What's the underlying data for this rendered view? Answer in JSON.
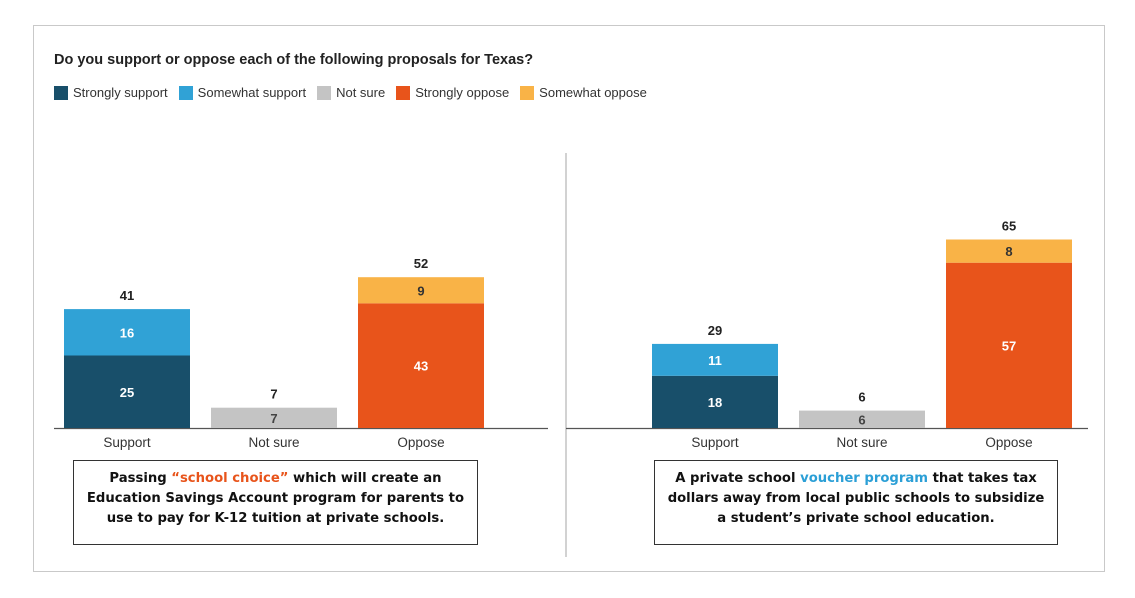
{
  "title": "Do you support or oppose each of the following proposals for Texas?",
  "legend": [
    {
      "label": "Strongly support",
      "color": "#184f6a"
    },
    {
      "label": "Somewhat support",
      "color": "#30a2d6"
    },
    {
      "label": "Not sure",
      "color": "#c4c4c4"
    },
    {
      "label": "Strongly oppose",
      "color": "#e8541b"
    },
    {
      "label": "Somewhat oppose",
      "color": "#f9b347"
    }
  ],
  "captions": {
    "left": {
      "before": "Passing ",
      "highlight": "“school choice”",
      "after": " which will create an Education Savings Account program for parents to use to pay for K-12 tuition at private schools."
    },
    "right": {
      "before": "A private school ",
      "highlight": "voucher program",
      "after": " that takes tax dollars away from local public schools to subsidize a student’s private school education."
    }
  },
  "chart_data": [
    {
      "type": "bar",
      "stacked": true,
      "categories": [
        "Support",
        "Not sure",
        "Oppose"
      ],
      "series": [
        {
          "name": "Strongly support",
          "values": [
            25,
            0,
            0
          ]
        },
        {
          "name": "Somewhat support",
          "values": [
            16,
            0,
            0
          ]
        },
        {
          "name": "Not sure",
          "values": [
            0,
            7,
            0
          ]
        },
        {
          "name": "Strongly oppose",
          "values": [
            0,
            0,
            43
          ]
        },
        {
          "name": "Somewhat oppose",
          "values": [
            0,
            0,
            9
          ]
        }
      ],
      "totals": [
        41,
        7,
        52
      ],
      "ylim": [
        0,
        70
      ]
    },
    {
      "type": "bar",
      "stacked": true,
      "categories": [
        "Support",
        "Not sure",
        "Oppose"
      ],
      "series": [
        {
          "name": "Strongly support",
          "values": [
            18,
            0,
            0
          ]
        },
        {
          "name": "Somewhat support",
          "values": [
            11,
            0,
            0
          ]
        },
        {
          "name": "Not sure",
          "values": [
            0,
            6,
            0
          ]
        },
        {
          "name": "Strongly oppose",
          "values": [
            0,
            0,
            57
          ]
        },
        {
          "name": "Somewhat oppose",
          "values": [
            0,
            0,
            8
          ]
        }
      ],
      "totals": [
        29,
        6,
        65
      ],
      "ylim": [
        0,
        70
      ]
    }
  ]
}
